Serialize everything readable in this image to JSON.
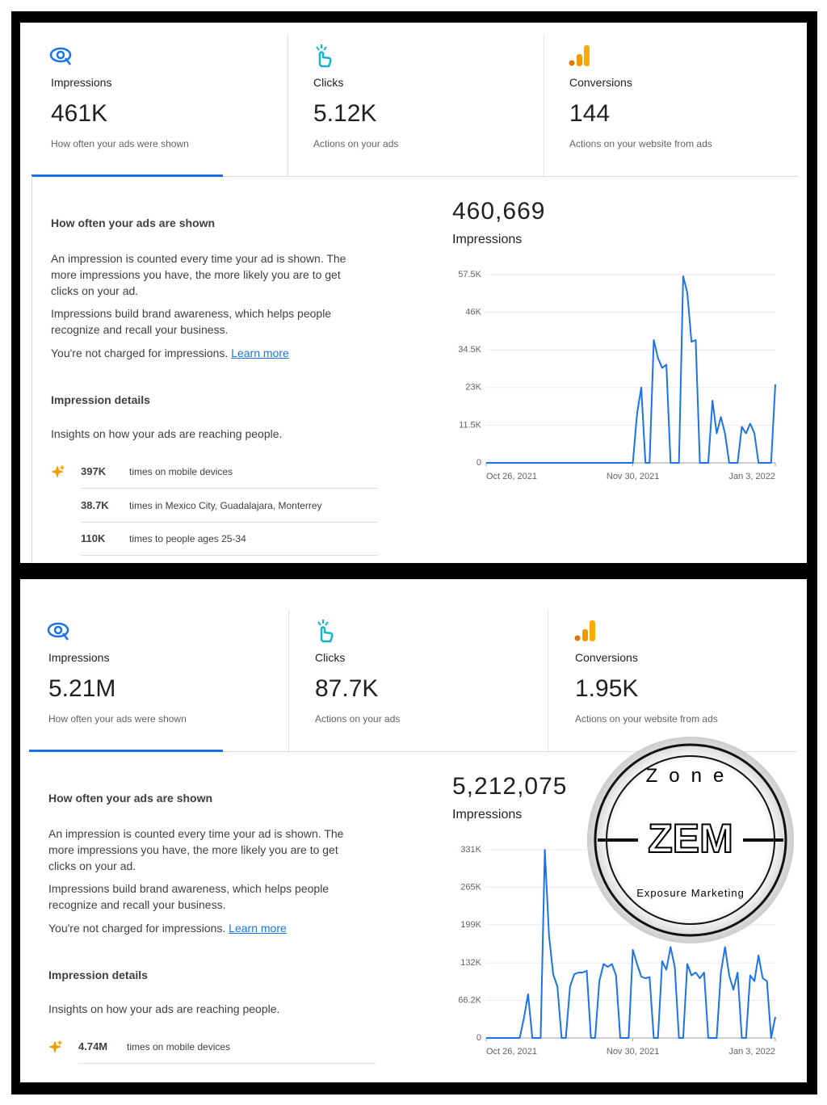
{
  "panels": [
    {
      "metrics": [
        {
          "label": "Impressions",
          "value": "461K",
          "description": "How often your ads were shown"
        },
        {
          "label": "Clicks",
          "value": "5.12K",
          "description": "Actions on your ads"
        },
        {
          "label": "Conversions",
          "value": "144",
          "description": "Actions on your website from ads"
        }
      ],
      "section_title": "How often your ads are shown",
      "paragraphs": [
        "An impression is counted every time your ad is shown. The more impressions you have, the more likely you are to get clicks on your ad.",
        "Impressions build brand awareness, which helps people recognize and recall your business."
      ],
      "note": "You're not charged for impressions.",
      "link": "Learn more",
      "details_title": "Impression details",
      "details_subtitle": "Insights on how your ads are reaching people.",
      "details": [
        {
          "value": "397K",
          "text": "times on mobile devices"
        },
        {
          "value": "38.7K",
          "text": "times in Mexico City, Guadalajara, Monterrey"
        },
        {
          "value": "110K",
          "text": "times to people ages 25-34"
        }
      ],
      "chart_data": {
        "type": "line",
        "total": "460,669",
        "title": "Impressions",
        "color": "#1a73e8",
        "grid": true,
        "categories": [
          "Oct 26, 2021",
          null,
          null,
          null,
          null,
          null,
          null,
          null,
          null,
          null,
          null,
          null,
          null,
          null,
          null,
          null,
          null,
          null,
          null,
          null,
          null,
          null,
          null,
          null,
          null,
          null,
          null,
          null,
          null,
          null,
          null,
          null,
          null,
          null,
          null,
          "Nov 30, 2021",
          null,
          null,
          null,
          null,
          null,
          null,
          null,
          null,
          null,
          null,
          null,
          null,
          null,
          null,
          null,
          null,
          null,
          null,
          null,
          null,
          null,
          null,
          null,
          null,
          null,
          null,
          null,
          null,
          null,
          null,
          null,
          null,
          null,
          "Jan 3, 2022"
        ],
        "values": [
          0,
          0,
          0,
          0,
          0,
          0,
          0,
          0,
          0,
          0,
          0,
          0,
          0,
          0,
          0,
          0,
          0,
          0,
          0,
          0,
          0,
          0,
          0,
          0,
          0,
          0,
          0,
          0,
          0,
          0,
          0,
          0,
          0,
          0,
          0,
          0,
          15000,
          23000,
          0,
          0,
          37500,
          32000,
          29000,
          30000,
          0,
          0,
          0,
          57000,
          52000,
          37000,
          37500,
          0,
          0,
          0,
          19000,
          9000,
          14000,
          9000,
          0,
          0,
          0,
          11000,
          9000,
          12000,
          9000,
          0,
          0,
          0,
          0,
          24000
        ],
        "ylim": [
          0,
          57500
        ],
        "yticks": [
          0,
          {
            "value": 11500,
            "label": "11.5K"
          },
          {
            "value": 23000,
            "label": "23K"
          },
          {
            "value": 34500,
            "label": "34.5K"
          },
          {
            "value": 46000,
            "label": "46K"
          },
          {
            "value": 57500,
            "label": "57.5K"
          }
        ]
      }
    },
    {
      "metrics": [
        {
          "label": "Impressions",
          "value": "5.21M",
          "description": "How often your ads were shown"
        },
        {
          "label": "Clicks",
          "value": "87.7K",
          "description": "Actions on your ads"
        },
        {
          "label": "Conversions",
          "value": "1.95K",
          "description": "Actions on your website from ads"
        }
      ],
      "section_title": "How often your ads are shown",
      "paragraphs": [
        "An impression is counted every time your ad is shown. The more impressions you have, the more likely you are to get clicks on your ad.",
        "Impressions build brand awareness, which helps people recognize and recall your business."
      ],
      "note": "You're not charged for impressions.",
      "link": "Learn more",
      "details_title": "Impression details",
      "details_subtitle": "Insights on how your ads are reaching people.",
      "details": [
        {
          "value": "4.74M",
          "text": "times on mobile devices"
        }
      ],
      "chart_data": {
        "type": "line",
        "total": "5,212,075",
        "title": "Impressions",
        "color": "#1a73e8",
        "grid": true,
        "categories": [
          "Oct 26, 2021",
          null,
          null,
          null,
          null,
          null,
          null,
          null,
          null,
          null,
          null,
          null,
          null,
          null,
          null,
          null,
          null,
          null,
          null,
          null,
          null,
          null,
          null,
          null,
          null,
          null,
          null,
          null,
          null,
          null,
          null,
          null,
          null,
          null,
          null,
          "Nov 30, 2021",
          null,
          null,
          null,
          null,
          null,
          null,
          null,
          null,
          null,
          null,
          null,
          null,
          null,
          null,
          null,
          null,
          null,
          null,
          null,
          null,
          null,
          null,
          null,
          null,
          null,
          null,
          null,
          null,
          null,
          null,
          null,
          null,
          null,
          "Jan 3, 2022"
        ],
        "values": [
          0,
          0,
          0,
          0,
          0,
          0,
          0,
          0,
          0,
          35000,
          77000,
          0,
          0,
          0,
          331000,
          180000,
          112000,
          90000,
          0,
          0,
          90000,
          112000,
          115000,
          115000,
          118000,
          0,
          0,
          100000,
          130000,
          125000,
          130000,
          110000,
          0,
          0,
          0,
          155000,
          130000,
          108000,
          105000,
          107000,
          0,
          0,
          135000,
          120000,
          160000,
          125000,
          0,
          0,
          130000,
          110000,
          115000,
          105000,
          115000,
          0,
          0,
          0,
          115000,
          160000,
          110000,
          85000,
          115000,
          0,
          0,
          110000,
          100000,
          145000,
          105000,
          100000,
          0,
          37000
        ],
        "ylim": [
          0,
          331000
        ],
        "yticks": [
          0,
          {
            "value": 66200,
            "label": "66.2K"
          },
          {
            "value": 132000,
            "label": "132K"
          },
          {
            "value": 199000,
            "label": "199K"
          },
          {
            "value": 265000,
            "label": "265K"
          },
          {
            "value": 331000,
            "label": "331K"
          }
        ]
      }
    }
  ],
  "watermark": {
    "top": "Zone",
    "center": "ZEM",
    "bottom": "Exposure Marketing"
  }
}
